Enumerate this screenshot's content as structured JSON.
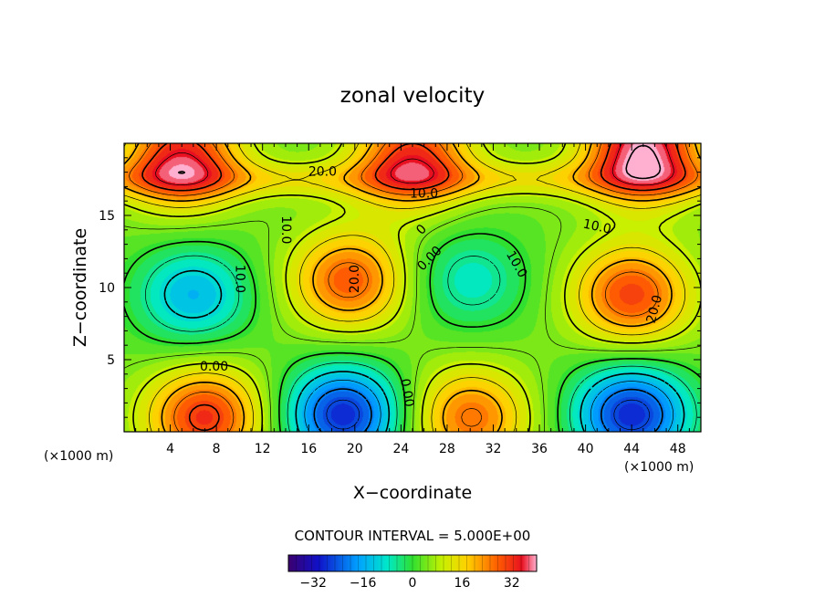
{
  "chart_data": {
    "type": "heatmap",
    "title": "zonal velocity",
    "xlabel": "X−coordinate",
    "ylabel": "Z−coordinate",
    "x_unit_left": "(×1000 m)",
    "x_unit_right": "(×1000 m)",
    "xlim": [
      0,
      50
    ],
    "ylim": [
      0,
      20
    ],
    "x_ticks": [
      4,
      8,
      12,
      16,
      20,
      24,
      28,
      32,
      36,
      40,
      44,
      48
    ],
    "y_ticks": [
      5,
      10,
      15
    ],
    "contour_interval_text": "CONTOUR INTERVAL = 5.000E+00",
    "contour_interval": 5,
    "colorbar": {
      "range": [
        -40,
        40
      ],
      "ticks": [
        -32,
        -16,
        0,
        16,
        32
      ],
      "tick_labels": [
        "−32",
        "−16",
        "0",
        "16",
        "32"
      ],
      "colormap": "rainbow (purple-blue-cyan-green-yellow-orange-red-pink)"
    },
    "features": [
      {
        "type": "low",
        "x": 6,
        "z": 9.5,
        "value": -18
      },
      {
        "type": "high",
        "x": 19.5,
        "z": 10.5,
        "value": 24
      },
      {
        "type": "low",
        "x": 30,
        "z": 10.5,
        "value": -12
      },
      {
        "type": "high",
        "x": 44,
        "z": 9.5,
        "value": 26
      },
      {
        "type": "high",
        "x": 7,
        "z": 1,
        "value": 28
      },
      {
        "type": "low",
        "x": 19,
        "z": 1.2,
        "value": -32
      },
      {
        "type": "high",
        "x": 30,
        "z": 1,
        "value": 22
      },
      {
        "type": "low",
        "x": 44,
        "z": 1.2,
        "value": -32
      },
      {
        "type": "high",
        "x": 45,
        "z": 19.5,
        "value": 36
      },
      {
        "type": "high",
        "x": 5,
        "z": 19,
        "value": 30
      },
      {
        "type": "high",
        "x": 25,
        "z": 19,
        "value": 28
      }
    ],
    "contour_labels": [
      {
        "text": "20.0",
        "x": 17.2,
        "z": 18.0,
        "angle": 0
      },
      {
        "text": "10.0",
        "x": 26.0,
        "z": 16.5,
        "angle": 0
      },
      {
        "text": "10.0",
        "x": 14.0,
        "z": 14.0,
        "angle": 90
      },
      {
        "text": "10.0",
        "x": 41.0,
        "z": 14.2,
        "angle": 12
      },
      {
        "text": "10.0",
        "x": 10.0,
        "z": 10.6,
        "angle": 90
      },
      {
        "text": "20.0",
        "x": 20.0,
        "z": 10.6,
        "angle": -90
      },
      {
        "text": "10.0",
        "x": 34.0,
        "z": 11.6,
        "angle": 60
      },
      {
        "text": "0.00",
        "x": 26.5,
        "z": 12.0,
        "angle": -45
      },
      {
        "text": "20.0",
        "x": 46.0,
        "z": 8.5,
        "angle": -75
      },
      {
        "text": "0.00",
        "x": 7.8,
        "z": 4.5,
        "angle": 0
      },
      {
        "text": "0.00",
        "x": 24.5,
        "z": 2.7,
        "angle": 80
      },
      {
        "text": "0",
        "x": 25.8,
        "z": 14.0,
        "angle": -45
      }
    ]
  }
}
